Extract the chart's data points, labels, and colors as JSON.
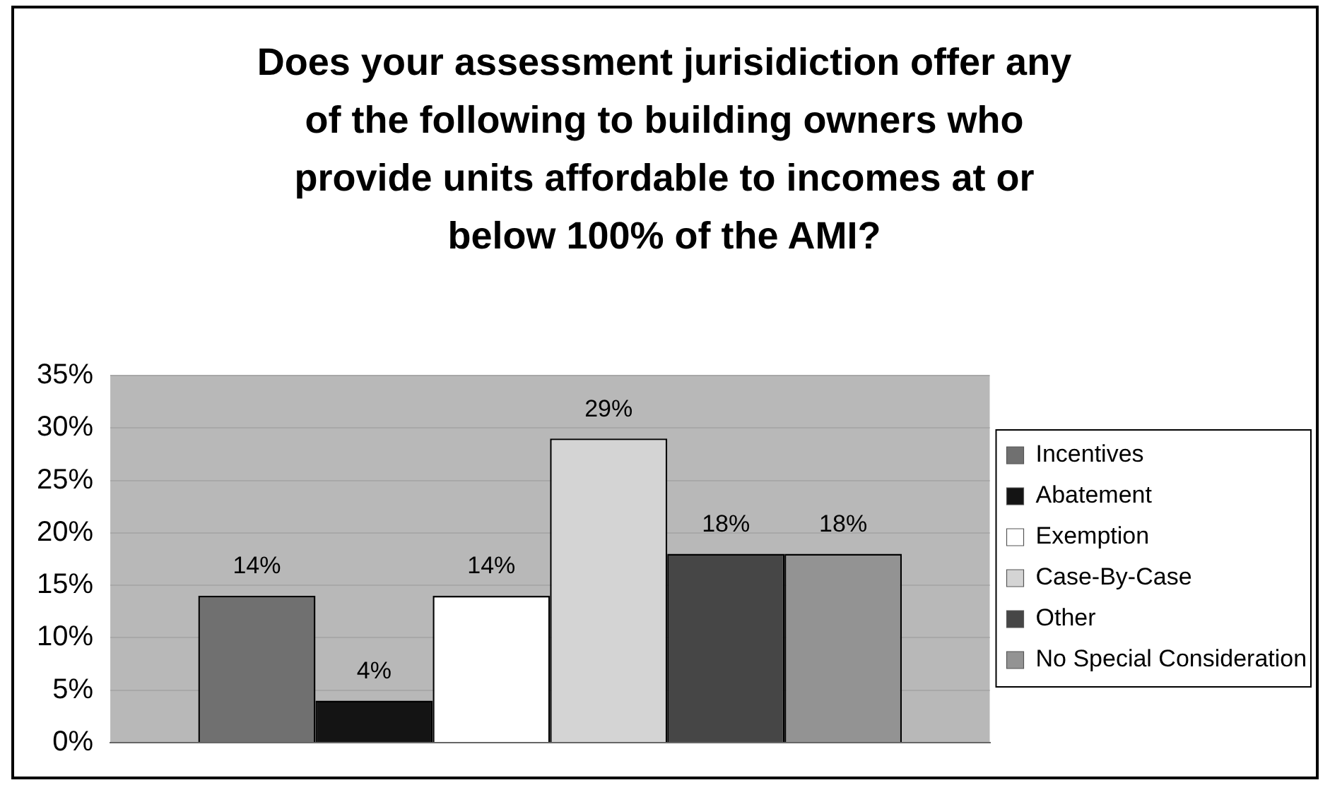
{
  "chart_data": {
    "type": "bar",
    "title": "Does your assessment jurisidiction offer any of the following to building owners who provide units affordable to incomes at or below 100% of the AMI?",
    "categories": [
      null
    ],
    "series": [
      {
        "name": "Incentives",
        "color": "#707070",
        "values": [
          14
        ],
        "value_labels": [
          "14%"
        ]
      },
      {
        "name": "Abatement",
        "color": "#141414",
        "values": [
          4
        ],
        "value_labels": [
          "4%"
        ]
      },
      {
        "name": "Exemption",
        "color": "#ffffff",
        "values": [
          14
        ],
        "value_labels": [
          "14%"
        ]
      },
      {
        "name": "Case-By-Case",
        "color": "#d4d4d4",
        "values": [
          29
        ],
        "value_labels": [
          "29%"
        ]
      },
      {
        "name": "Other",
        "color": "#464646",
        "values": [
          18
        ],
        "value_labels": [
          "18%"
        ]
      },
      {
        "name": "No Special Consideration",
        "color": "#939393",
        "values": [
          18
        ],
        "value_labels": [
          "18%"
        ]
      }
    ],
    "ylim": [
      0,
      35
    ],
    "yticks": [
      {
        "value": 0,
        "label": "0%"
      },
      {
        "value": 5,
        "label": "5%"
      },
      {
        "value": 10,
        "label": "10%"
      },
      {
        "value": 15,
        "label": "15%"
      },
      {
        "value": 20,
        "label": "20%"
      },
      {
        "value": 25,
        "label": "25%"
      },
      {
        "value": 30,
        "label": "30%"
      },
      {
        "value": 35,
        "label": "35%"
      }
    ],
    "grid": "y",
    "legend": "right"
  }
}
